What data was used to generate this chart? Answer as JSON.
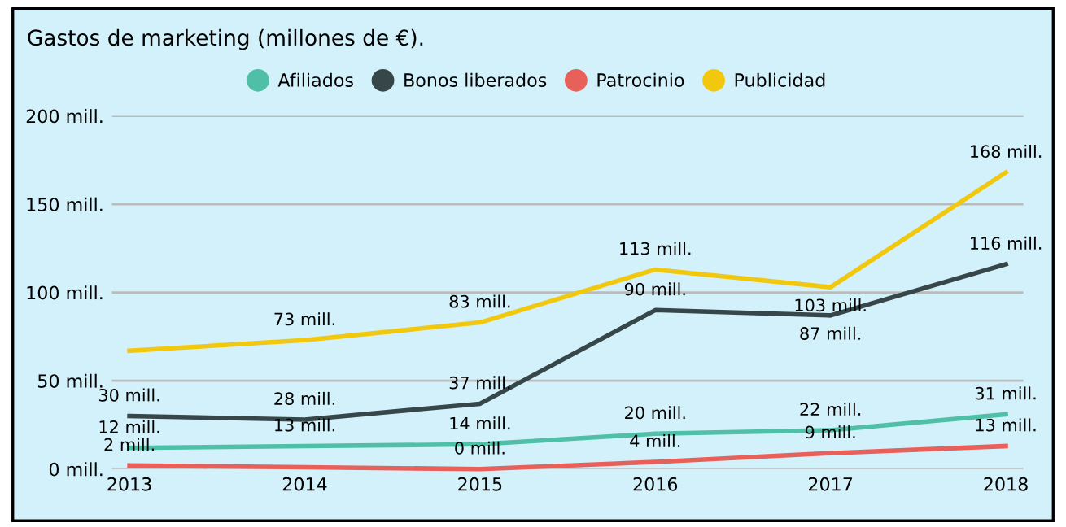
{
  "chart_data": {
    "type": "line",
    "title": "Gastos de marketing (millones de €).",
    "categories": [
      "2013",
      "2014",
      "2015",
      "2016",
      "2017",
      "2018"
    ],
    "series": [
      {
        "name": "Afiliados",
        "color": "#4fbfa8",
        "values": [
          12,
          13,
          14,
          20,
          22,
          31
        ],
        "value_labels": [
          "12 mill.",
          "13 mill.",
          "14 mill.",
          "20 mill.",
          "22 mill.",
          "31 mill."
        ]
      },
      {
        "name": "Bonos liberados",
        "color": "#374649",
        "values": [
          30,
          28,
          37,
          90,
          87,
          116
        ],
        "value_labels": [
          "30 mill.",
          "28 mill.",
          "37 mill.",
          "90 mill.",
          "87 mill.",
          "116 mill."
        ]
      },
      {
        "name": "Patrocinio",
        "color": "#e8605a",
        "values": [
          2,
          1,
          0,
          4,
          9,
          13
        ],
        "value_labels": [
          "2 mill.",
          null,
          "0 mill.",
          "4 mill.",
          "9 mill.",
          "13 mill."
        ]
      },
      {
        "name": "Publicidad",
        "color": "#f2c80f",
        "values": [
          67,
          73,
          83,
          113,
          103,
          168
        ],
        "value_labels": [
          null,
          "73 mill.",
          "83 mill.",
          "113 mill.",
          "103 mill.",
          "168 mill."
        ]
      }
    ],
    "ylim": [
      0,
      200
    ],
    "yticks": [
      {
        "value": 0,
        "label": "0 mill."
      },
      {
        "value": 50,
        "label": "50 mill."
      },
      {
        "value": 100,
        "label": "100 mill."
      },
      {
        "value": 150,
        "label": "150 mill."
      },
      {
        "value": 200,
        "label": "200 mill."
      }
    ],
    "grid": "y",
    "legend": "top",
    "marker": "none",
    "line_style": "solid"
  }
}
